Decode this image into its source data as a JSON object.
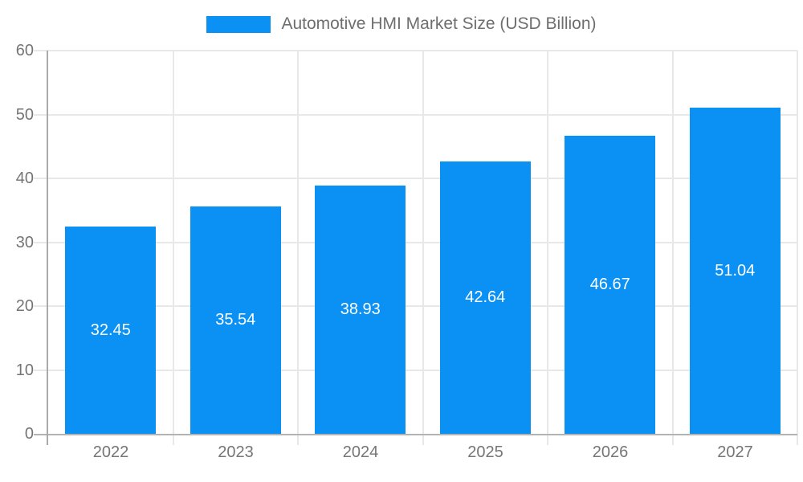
{
  "legend": {
    "label": "Automotive HMI Market Size (USD Billion)",
    "swatch_color": "#0b90f4"
  },
  "chart_data": {
    "type": "bar",
    "title": "Automotive HMI Market Size (USD Billion)",
    "categories": [
      "2022",
      "2023",
      "2024",
      "2025",
      "2026",
      "2027"
    ],
    "values": [
      32.45,
      35.54,
      38.93,
      42.64,
      46.67,
      51.04
    ],
    "data_labels": [
      "32.45",
      "35.54",
      "38.93",
      "42.64",
      "46.67",
      "51.04"
    ],
    "xlabel": "",
    "ylabel": "",
    "ylim": [
      0,
      60
    ],
    "yticks": [
      0,
      10,
      20,
      30,
      40,
      50,
      60
    ],
    "grid": true,
    "legend_position": "top",
    "bar_color": "#0b90f4",
    "bar_label_color": "#ffffff",
    "grid_color": "#e8e8e8",
    "axis_line_color": "#a9a9a9",
    "tick_label_color": "#757575"
  }
}
